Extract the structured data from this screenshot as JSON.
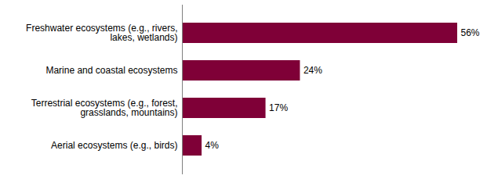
{
  "chart_data": {
    "type": "bar",
    "orientation": "horizontal",
    "categories": [
      "Freshwater ecosystems (e.g., rivers, lakes, wetlands)",
      "Marine and coastal ecosystems",
      "Terrestrial ecosystems (e.g., forest, grasslands, mountains)",
      "Aerial ecosystems (e.g., birds)"
    ],
    "values": [
      56,
      24,
      17,
      4
    ],
    "value_labels": [
      "56%",
      "24%",
      "17%",
      "4%"
    ],
    "color": "#7f0037",
    "data_labels": true,
    "tick_labels": "y",
    "grid": false
  }
}
